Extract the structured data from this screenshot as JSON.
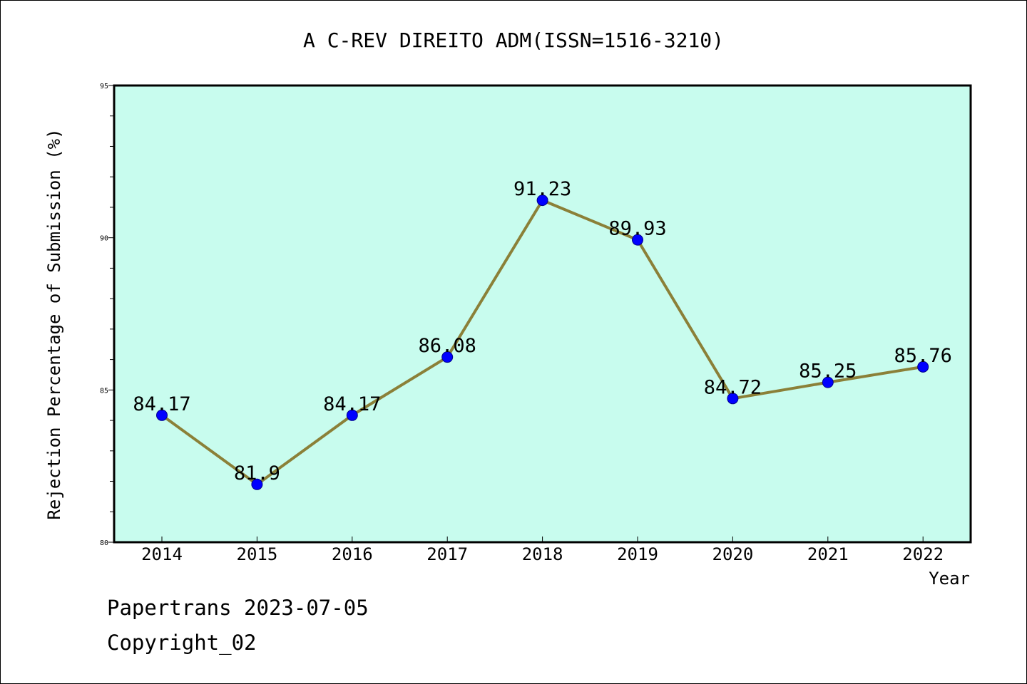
{
  "chart_data": {
    "type": "line",
    "title": "A C-REV DIREITO ADM(ISSN=1516-3210)",
    "xlabel": "Year",
    "ylabel": "Rejection Percentage of Submission (%)",
    "categories": [
      "2014",
      "2015",
      "2016",
      "2017",
      "2018",
      "2019",
      "2020",
      "2021",
      "2022"
    ],
    "values": [
      84.17,
      81.9,
      84.17,
      86.08,
      91.23,
      89.93,
      84.72,
      85.25,
      85.76
    ],
    "data_labels": [
      "84.17",
      "81.9",
      "84.17",
      "86.08",
      "91.23",
      "89.93",
      "84.72",
      "85.25",
      "85.76"
    ],
    "ylim": [
      80,
      95
    ],
    "yticks": [
      "80",
      "85",
      "90",
      "95"
    ],
    "grid": false,
    "colors": {
      "plot_background": "#c8fcee",
      "line": "#8b8038",
      "marker": "#0000ff"
    }
  },
  "footer": {
    "line1": "Papertrans 2023-07-05",
    "line2": "Copyright_02"
  }
}
